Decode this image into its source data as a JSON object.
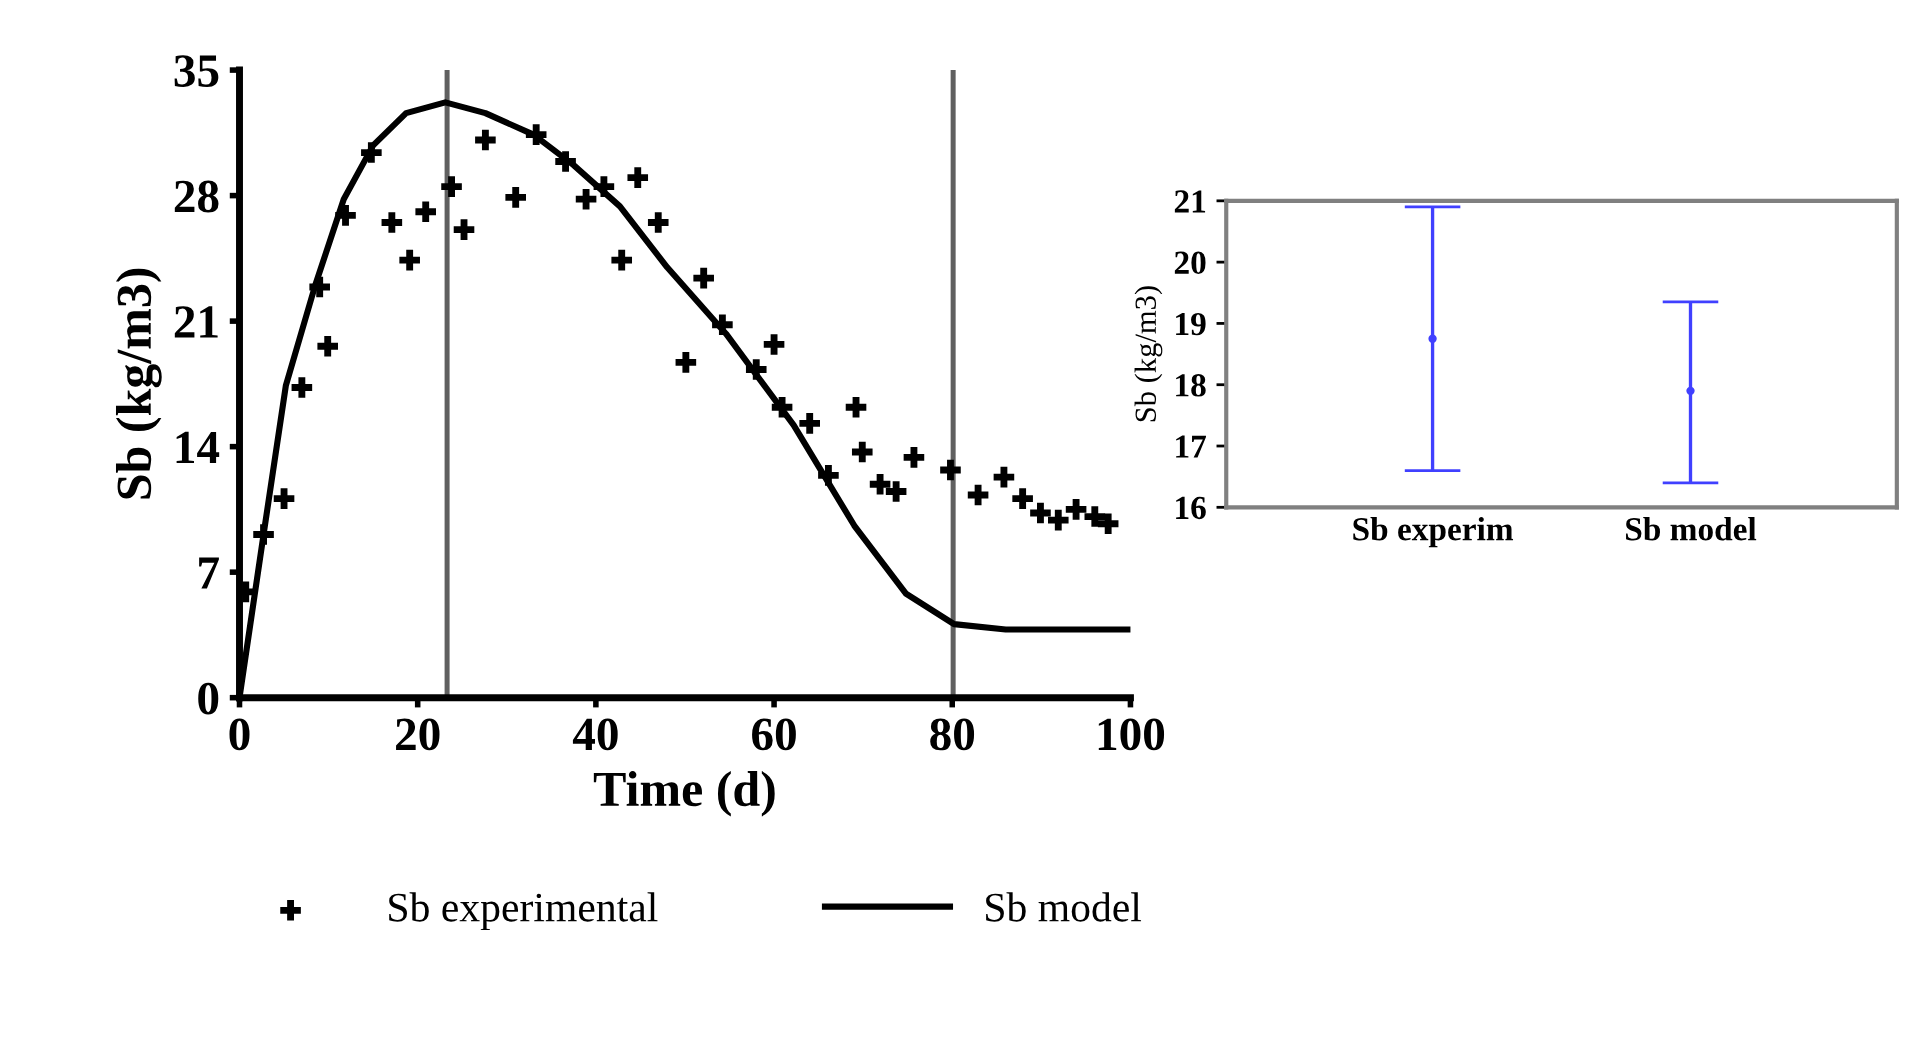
{
  "chart_data": [
    {
      "type": "scatter",
      "xlabel": "Time (d)",
      "ylabel": "Sb (kg/m3)",
      "xlim": [
        0,
        100
      ],
      "ylim": [
        0,
        35
      ],
      "xticks": [
        0,
        20,
        40,
        60,
        80,
        100
      ],
      "yticks": [
        0,
        7,
        14,
        21,
        28,
        35
      ],
      "grid": false,
      "legend": "bottom",
      "ref_lines": [
        {
          "axis": "x",
          "value": 23.3,
          "color": "#606060"
        },
        {
          "axis": "x",
          "value": 80.1,
          "color": "#606060"
        }
      ],
      "series": [
        {
          "name": "Sb experimental",
          "type": "scatter",
          "marker": "cross",
          "color": "#000000",
          "x": [
            0.7,
            2.7,
            5,
            7,
            9,
            9.9,
            11.9,
            14.8,
            17.1,
            19.1,
            20.9,
            23.8,
            25.2,
            27.6,
            31,
            33.3,
            36.6,
            38.9,
            40.9,
            42.9,
            44.7,
            47,
            50.1,
            52.1,
            54.2,
            58,
            60,
            60.9,
            64,
            66.1,
            69.2,
            69.9,
            71.9,
            73.7,
            75.7,
            79.8,
            82.9,
            85.8,
            87.9,
            89.9,
            91.9,
            93.9,
            96,
            97.5
          ],
          "values": [
            5.9,
            9.1,
            11.1,
            17.3,
            22.9,
            19.6,
            26.9,
            30.4,
            26.5,
            24.4,
            27.1,
            28.5,
            26.1,
            31.1,
            27.9,
            31.4,
            29.9,
            27.8,
            28.5,
            24.4,
            29.0,
            26.5,
            18.7,
            23.4,
            20.8,
            18.3,
            19.7,
            16.2,
            15.3,
            12.4,
            16.2,
            13.7,
            11.9,
            11.5,
            13.4,
            12.7,
            11.3,
            12.3,
            11.1,
            10.3,
            9.9,
            10.5,
            10.1,
            9.7
          ]
        },
        {
          "name": "Sb model",
          "type": "line",
          "marker": "none",
          "line_style": "solid",
          "color": "#000000",
          "x": [
            0,
            2.7,
            5.2,
            8.5,
            11.7,
            15,
            18.7,
            23.1,
            27.6,
            33,
            37.5,
            42.7,
            48,
            54.6,
            62.2,
            69,
            74.8,
            80.2,
            86,
            100
          ],
          "values": [
            0,
            9.1,
            17.4,
            23.0,
            27.8,
            30.8,
            32.6,
            33.2,
            32.6,
            31.4,
            29.7,
            27.4,
            24.0,
            20.3,
            15.2,
            9.6,
            5.8,
            4.1,
            3.8,
            3.8
          ]
        }
      ]
    },
    {
      "type": "scatter",
      "ylabel": "Sb (kg/m3)",
      "categories": [
        "Sb experim",
        "Sb model"
      ],
      "ylim": [
        16,
        21
      ],
      "yticks": [
        16,
        17,
        18,
        19,
        20,
        21
      ],
      "grid": false,
      "legend": false,
      "marker": "circle",
      "series": [
        {
          "color": "#4040ff",
          "values": [
            18.75,
            17.9
          ],
          "errors": [
            [
              16.6,
              20.9
            ],
            [
              16.4,
              19.35
            ]
          ]
        }
      ]
    }
  ]
}
